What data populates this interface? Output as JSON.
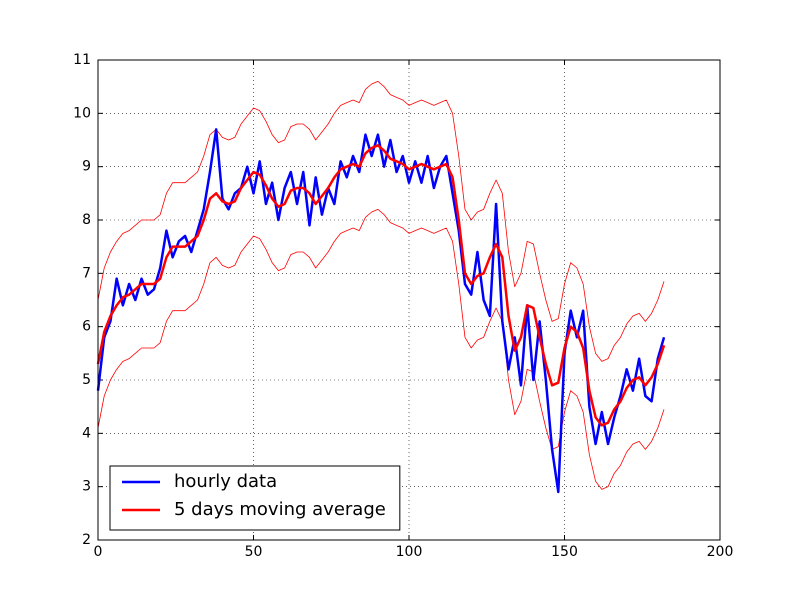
{
  "chart_data": {
    "type": "line",
    "x": [
      0,
      2,
      4,
      6,
      8,
      10,
      12,
      14,
      16,
      18,
      20,
      22,
      24,
      26,
      28,
      30,
      32,
      34,
      36,
      38,
      40,
      42,
      44,
      46,
      48,
      50,
      52,
      54,
      56,
      58,
      60,
      62,
      64,
      66,
      68,
      70,
      72,
      74,
      76,
      78,
      80,
      82,
      84,
      86,
      88,
      90,
      92,
      94,
      96,
      98,
      100,
      102,
      104,
      106,
      108,
      110,
      112,
      114,
      116,
      118,
      120,
      122,
      124,
      126,
      128,
      130,
      132,
      134,
      136,
      138,
      140,
      142,
      144,
      146,
      148,
      150,
      152,
      154,
      156,
      158,
      160,
      162,
      164,
      166,
      168,
      170,
      172,
      174,
      176,
      178,
      180,
      182
    ],
    "series": [
      {
        "name": "hourly data",
        "color": "#0000ff",
        "width": 2.5,
        "values": [
          4.8,
          5.8,
          6.1,
          6.9,
          6.4,
          6.8,
          6.5,
          6.9,
          6.6,
          6.7,
          7.1,
          7.8,
          7.3,
          7.6,
          7.7,
          7.4,
          7.8,
          8.2,
          8.9,
          9.7,
          8.4,
          8.2,
          8.5,
          8.6,
          9.0,
          8.5,
          9.1,
          8.3,
          8.7,
          8.0,
          8.6,
          8.9,
          8.3,
          8.9,
          7.9,
          8.8,
          8.1,
          8.6,
          8.3,
          9.1,
          8.8,
          9.2,
          8.9,
          9.6,
          9.2,
          9.6,
          9.0,
          9.5,
          8.9,
          9.2,
          8.7,
          9.1,
          8.7,
          9.2,
          8.6,
          9.0,
          9.2,
          8.5,
          7.8,
          6.8,
          6.6,
          7.4,
          6.5,
          6.2,
          8.3,
          6.1,
          5.2,
          5.8,
          4.9,
          6.4,
          5.0,
          6.1,
          5.0,
          3.7,
          2.9,
          5.5,
          6.3,
          5.8,
          6.3,
          4.5,
          3.8,
          4.4,
          3.8,
          4.3,
          4.7,
          5.2,
          4.8,
          5.4,
          4.7,
          4.6,
          5.4,
          5.8
        ]
      },
      {
        "name": "5 days moving average",
        "color": "#ff0000",
        "width": 2.5,
        "values": [
          5.3,
          5.9,
          6.2,
          6.4,
          6.55,
          6.6,
          6.7,
          6.8,
          6.8,
          6.8,
          6.9,
          7.3,
          7.5,
          7.5,
          7.5,
          7.6,
          7.7,
          8.0,
          8.4,
          8.5,
          8.35,
          8.3,
          8.35,
          8.6,
          8.75,
          8.9,
          8.85,
          8.65,
          8.4,
          8.25,
          8.3,
          8.55,
          8.6,
          8.6,
          8.5,
          8.3,
          8.45,
          8.6,
          8.8,
          8.95,
          9.0,
          9.05,
          9.0,
          9.25,
          9.35,
          9.4,
          9.3,
          9.15,
          9.1,
          9.05,
          8.95,
          9.0,
          9.05,
          9.0,
          8.95,
          9.0,
          9.05,
          8.8,
          8.0,
          7.0,
          6.8,
          6.95,
          7.0,
          7.3,
          7.55,
          7.3,
          6.2,
          5.55,
          5.8,
          6.4,
          6.35,
          5.8,
          5.3,
          4.9,
          4.95,
          5.6,
          6.0,
          5.9,
          5.6,
          4.8,
          4.3,
          4.15,
          4.2,
          4.45,
          4.6,
          4.85,
          5.0,
          5.05,
          4.9,
          5.05,
          5.3,
          5.65
        ]
      },
      {
        "color": "#ff0000",
        "width": 0.8,
        "values": [
          6.5,
          7.1,
          7.4,
          7.6,
          7.75,
          7.8,
          7.9,
          8.0,
          8.0,
          8.0,
          8.1,
          8.5,
          8.7,
          8.7,
          8.7,
          8.8,
          8.9,
          9.2,
          9.6,
          9.7,
          9.55,
          9.5,
          9.55,
          9.8,
          9.95,
          10.1,
          10.05,
          9.85,
          9.6,
          9.45,
          9.5,
          9.75,
          9.8,
          9.8,
          9.7,
          9.5,
          9.65,
          9.8,
          10.0,
          10.15,
          10.2,
          10.25,
          10.2,
          10.45,
          10.55,
          10.6,
          10.5,
          10.35,
          10.3,
          10.25,
          10.15,
          10.2,
          10.25,
          10.2,
          10.15,
          10.2,
          10.25,
          10.0,
          9.2,
          8.2,
          8.0,
          8.15,
          8.2,
          8.5,
          8.75,
          8.5,
          7.4,
          6.75,
          7.0,
          7.6,
          7.55,
          7.0,
          6.5,
          6.1,
          6.15,
          6.8,
          7.2,
          7.1,
          6.8,
          6.0,
          5.5,
          5.35,
          5.4,
          5.65,
          5.8,
          6.05,
          6.2,
          6.25,
          6.1,
          6.25,
          6.5,
          6.85
        ]
      },
      {
        "color": "#ff0000",
        "width": 0.8,
        "values": [
          4.1,
          4.7,
          5.0,
          5.2,
          5.35,
          5.4,
          5.5,
          5.6,
          5.6,
          5.6,
          5.7,
          6.1,
          6.3,
          6.3,
          6.3,
          6.4,
          6.5,
          6.8,
          7.2,
          7.3,
          7.15,
          7.1,
          7.15,
          7.4,
          7.55,
          7.7,
          7.65,
          7.45,
          7.2,
          7.05,
          7.1,
          7.35,
          7.4,
          7.4,
          7.3,
          7.1,
          7.25,
          7.4,
          7.6,
          7.75,
          7.8,
          7.85,
          7.8,
          8.05,
          8.15,
          8.2,
          8.1,
          7.95,
          7.9,
          7.85,
          7.75,
          7.8,
          7.85,
          7.8,
          7.75,
          7.8,
          7.85,
          7.6,
          6.8,
          5.8,
          5.6,
          5.75,
          5.8,
          6.1,
          6.35,
          6.1,
          5.0,
          4.35,
          4.6,
          5.2,
          5.15,
          4.6,
          4.1,
          3.7,
          3.75,
          4.4,
          4.8,
          4.7,
          4.4,
          3.6,
          3.1,
          2.95,
          3.0,
          3.25,
          3.4,
          3.65,
          3.8,
          3.85,
          3.7,
          3.85,
          4.1,
          4.45
        ]
      }
    ],
    "xlim": [
      0,
      200
    ],
    "xticks": [
      0,
      50,
      100,
      150,
      200
    ],
    "ylim": [
      2,
      11
    ],
    "yticks": [
      2,
      3,
      4,
      5,
      6,
      7,
      8,
      9,
      10,
      11
    ],
    "grid": true,
    "legend": "lower left"
  }
}
